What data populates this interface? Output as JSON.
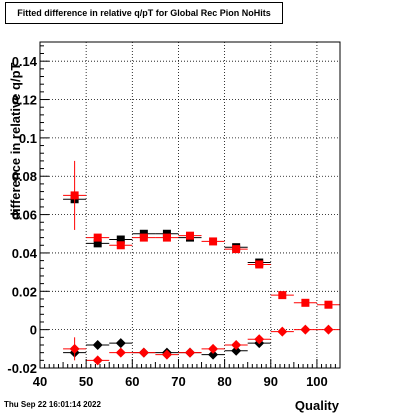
{
  "chart_data": {
    "type": "scatter",
    "title": "Fitted difference in relative q/pT for Global Rec Pion NoHits",
    "xlabel": "Quality",
    "ylabel": "difference in relative q/pT",
    "xlim": [
      40,
      105
    ],
    "ylim": [
      -0.02,
      0.15
    ],
    "x_ticks": [
      "40",
      "50",
      "60",
      "70",
      "80",
      "90",
      "100"
    ],
    "y_ticks": [
      "-0.02",
      "0",
      "0.02",
      "0.04",
      "0.06",
      "0.08",
      "0.1",
      "0.12",
      "0.14"
    ],
    "grid": true,
    "series": [
      {
        "marker": "square",
        "color": "#000000",
        "points": [
          {
            "x": 47.5,
            "y": 0.068,
            "ey": 0.0
          },
          {
            "x": 52.5,
            "y": 0.045,
            "ey": 0.0
          },
          {
            "x": 57.5,
            "y": 0.047,
            "ey": 0.0
          },
          {
            "x": 62.5,
            "y": 0.05,
            "ey": 0.0
          },
          {
            "x": 67.5,
            "y": 0.05,
            "ey": 0.0
          },
          {
            "x": 72.5,
            "y": 0.048,
            "ey": 0.0
          },
          {
            "x": 82.5,
            "y": 0.043,
            "ey": 0.0
          },
          {
            "x": 87.5,
            "y": 0.035,
            "ey": 0.0
          }
        ]
      },
      {
        "marker": "square",
        "color": "#ff0000",
        "points": [
          {
            "x": 47.5,
            "y": 0.07,
            "ey": 0.018
          },
          {
            "x": 52.5,
            "y": 0.048,
            "ey": 0.0
          },
          {
            "x": 57.5,
            "y": 0.044,
            "ey": 0.0
          },
          {
            "x": 62.5,
            "y": 0.048,
            "ey": 0.0
          },
          {
            "x": 67.5,
            "y": 0.048,
            "ey": 0.0
          },
          {
            "x": 72.5,
            "y": 0.049,
            "ey": 0.0
          },
          {
            "x": 77.5,
            "y": 0.046,
            "ey": 0.0
          },
          {
            "x": 82.5,
            "y": 0.042,
            "ey": 0.0
          },
          {
            "x": 87.5,
            "y": 0.034,
            "ey": 0.0
          },
          {
            "x": 92.5,
            "y": 0.018,
            "ey": 0.0
          },
          {
            "x": 97.5,
            "y": 0.014,
            "ey": 0.0
          },
          {
            "x": 102.5,
            "y": 0.013,
            "ey": 0.0
          }
        ]
      },
      {
        "marker": "diamond",
        "color": "#000000",
        "points": [
          {
            "x": 47.5,
            "y": -0.012,
            "ey": 0.0
          },
          {
            "x": 52.5,
            "y": -0.008,
            "ey": 0.0
          },
          {
            "x": 57.5,
            "y": -0.007,
            "ey": 0.0
          },
          {
            "x": 62.5,
            "y": -0.012,
            "ey": 0.0
          },
          {
            "x": 67.5,
            "y": -0.012,
            "ey": 0.0
          },
          {
            "x": 72.5,
            "y": -0.012,
            "ey": 0.0
          },
          {
            "x": 77.5,
            "y": -0.013,
            "ey": 0.0
          },
          {
            "x": 82.5,
            "y": -0.011,
            "ey": 0.0
          },
          {
            "x": 87.5,
            "y": -0.007,
            "ey": 0.0
          }
        ]
      },
      {
        "marker": "diamond",
        "color": "#ff0000",
        "points": [
          {
            "x": 47.5,
            "y": -0.01,
            "ey": 0.006
          },
          {
            "x": 52.5,
            "y": -0.016,
            "ey": 0.0
          },
          {
            "x": 57.5,
            "y": -0.012,
            "ey": 0.0
          },
          {
            "x": 62.5,
            "y": -0.012,
            "ey": 0.0
          },
          {
            "x": 67.5,
            "y": -0.013,
            "ey": 0.0
          },
          {
            "x": 72.5,
            "y": -0.012,
            "ey": 0.0
          },
          {
            "x": 77.5,
            "y": -0.01,
            "ey": 0.0
          },
          {
            "x": 82.5,
            "y": -0.008,
            "ey": 0.0
          },
          {
            "x": 87.5,
            "y": -0.005,
            "ey": 0.0
          },
          {
            "x": 92.5,
            "y": -0.001,
            "ey": 0.0
          },
          {
            "x": 97.5,
            "y": 0.0,
            "ey": 0.0
          },
          {
            "x": 102.5,
            "y": 0.0,
            "ey": 0.0
          }
        ]
      }
    ]
  },
  "footer": {
    "timestamp": "Thu Sep 22 16:01:14 2022"
  }
}
